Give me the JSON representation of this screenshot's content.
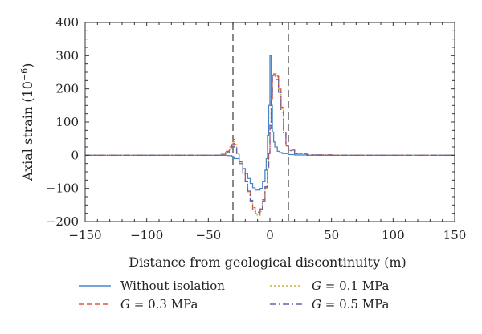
{
  "chart_data": {
    "type": "line",
    "title": "",
    "xlabel": "Distance from geological discontinuity (m)",
    "ylabel": "Axial strain (10",
    "ylabel_superscript": "−6",
    "ylabel_close": ")",
    "xlim": [
      -150,
      150
    ],
    "ylim": [
      -200,
      400
    ],
    "x_ticks": [
      -150,
      -100,
      -50,
      0,
      50,
      100,
      150
    ],
    "x_tick_labels": [
      "−150",
      "−100",
      "−50",
      "0",
      "50",
      "100",
      "150"
    ],
    "y_ticks": [
      -200,
      -100,
      0,
      100,
      200,
      300,
      400
    ],
    "y_tick_labels": [
      "−200",
      "−100",
      "0",
      "100",
      "200",
      "300",
      "400"
    ],
    "grid": false,
    "legend_position": "bottom",
    "reference_lines_x": [
      -30,
      15
    ],
    "series": [
      {
        "label_prefix": "",
        "label_suffix": "Without isolation",
        "color": "#4a86c8",
        "dash": "solid",
        "x": [
          -150,
          -100,
          -50,
          -40,
          -35,
          -31,
          -30,
          -29,
          -25,
          -22,
          -20,
          -18,
          -16,
          -14,
          -12,
          -10,
          -8,
          -6,
          -4,
          -3,
          -2,
          -1,
          0,
          1,
          2,
          3,
          4,
          6,
          8,
          10,
          15,
          20,
          30,
          50,
          100,
          150
        ],
        "y": [
          0,
          0,
          0,
          0,
          -1,
          -3,
          -5,
          -10,
          -25,
          -40,
          -55,
          -70,
          -85,
          -98,
          -105,
          -105,
          -100,
          -80,
          -45,
          -10,
          60,
          150,
          300,
          150,
          70,
          40,
          25,
          12,
          8,
          5,
          2,
          1,
          0,
          0,
          0,
          0
        ]
      },
      {
        "label_prefix": "G",
        "label_suffix": " = 0.1 MPa",
        "color": "#c8b43a",
        "dash": "2,3",
        "x": [
          -150,
          -100,
          -50,
          -40,
          -36,
          -33,
          -31,
          -30,
          -29,
          -27,
          -25,
          -22,
          -20,
          -18,
          -16,
          -14,
          -12,
          -10,
          -8,
          -6,
          -4,
          -2,
          -1,
          0,
          1,
          2,
          3,
          5,
          7,
          9,
          11,
          13,
          15,
          20,
          30,
          50,
          100,
          150
        ],
        "y": [
          0,
          0,
          0,
          3,
          10,
          22,
          38,
          45,
          30,
          5,
          -20,
          -55,
          -80,
          -110,
          -140,
          -165,
          -180,
          -182,
          -170,
          -140,
          -100,
          -40,
          0,
          80,
          170,
          240,
          242,
          235,
          200,
          140,
          70,
          30,
          15,
          5,
          1,
          0,
          0,
          0
        ]
      },
      {
        "label_prefix": "G",
        "label_suffix": " = 0.3 MPa",
        "color": "#d9553f",
        "dash": "6,4",
        "x": [
          -150,
          -100,
          -50,
          -40,
          -36,
          -33,
          -31,
          -30,
          -29,
          -27,
          -25,
          -22,
          -20,
          -18,
          -16,
          -14,
          -12,
          -10,
          -8,
          -6,
          -4,
          -2,
          -1,
          0,
          1,
          2,
          3,
          5,
          7,
          9,
          11,
          13,
          15,
          20,
          30,
          50,
          100,
          150
        ],
        "y": [
          0,
          0,
          0,
          3,
          12,
          25,
          40,
          48,
          32,
          8,
          -18,
          -52,
          -78,
          -108,
          -138,
          -162,
          -176,
          -178,
          -168,
          -138,
          -98,
          -38,
          2,
          80,
          168,
          238,
          245,
          238,
          205,
          145,
          75,
          32,
          16,
          6,
          1,
          0,
          0,
          0
        ]
      },
      {
        "label_prefix": "G",
        "label_suffix": " = 0.5 MPa",
        "color": "#6a5fa8",
        "dash": "8,3,2,3",
        "x": [
          -150,
          -100,
          -50,
          -40,
          -36,
          -33,
          -31,
          -30,
          -29,
          -27,
          -25,
          -22,
          -20,
          -18,
          -16,
          -14,
          -12,
          -10,
          -8,
          -6,
          -4,
          -2,
          -1,
          0,
          1,
          2,
          3,
          5,
          7,
          9,
          11,
          13,
          15,
          20,
          30,
          50,
          100,
          150
        ],
        "y": [
          0,
          0,
          0,
          2,
          8,
          18,
          30,
          35,
          25,
          5,
          -20,
          -55,
          -80,
          -108,
          -136,
          -158,
          -170,
          -172,
          -162,
          -134,
          -95,
          -35,
          5,
          90,
          180,
          240,
          238,
          228,
          190,
          130,
          65,
          28,
          14,
          5,
          1,
          0,
          0,
          0
        ]
      }
    ]
  }
}
